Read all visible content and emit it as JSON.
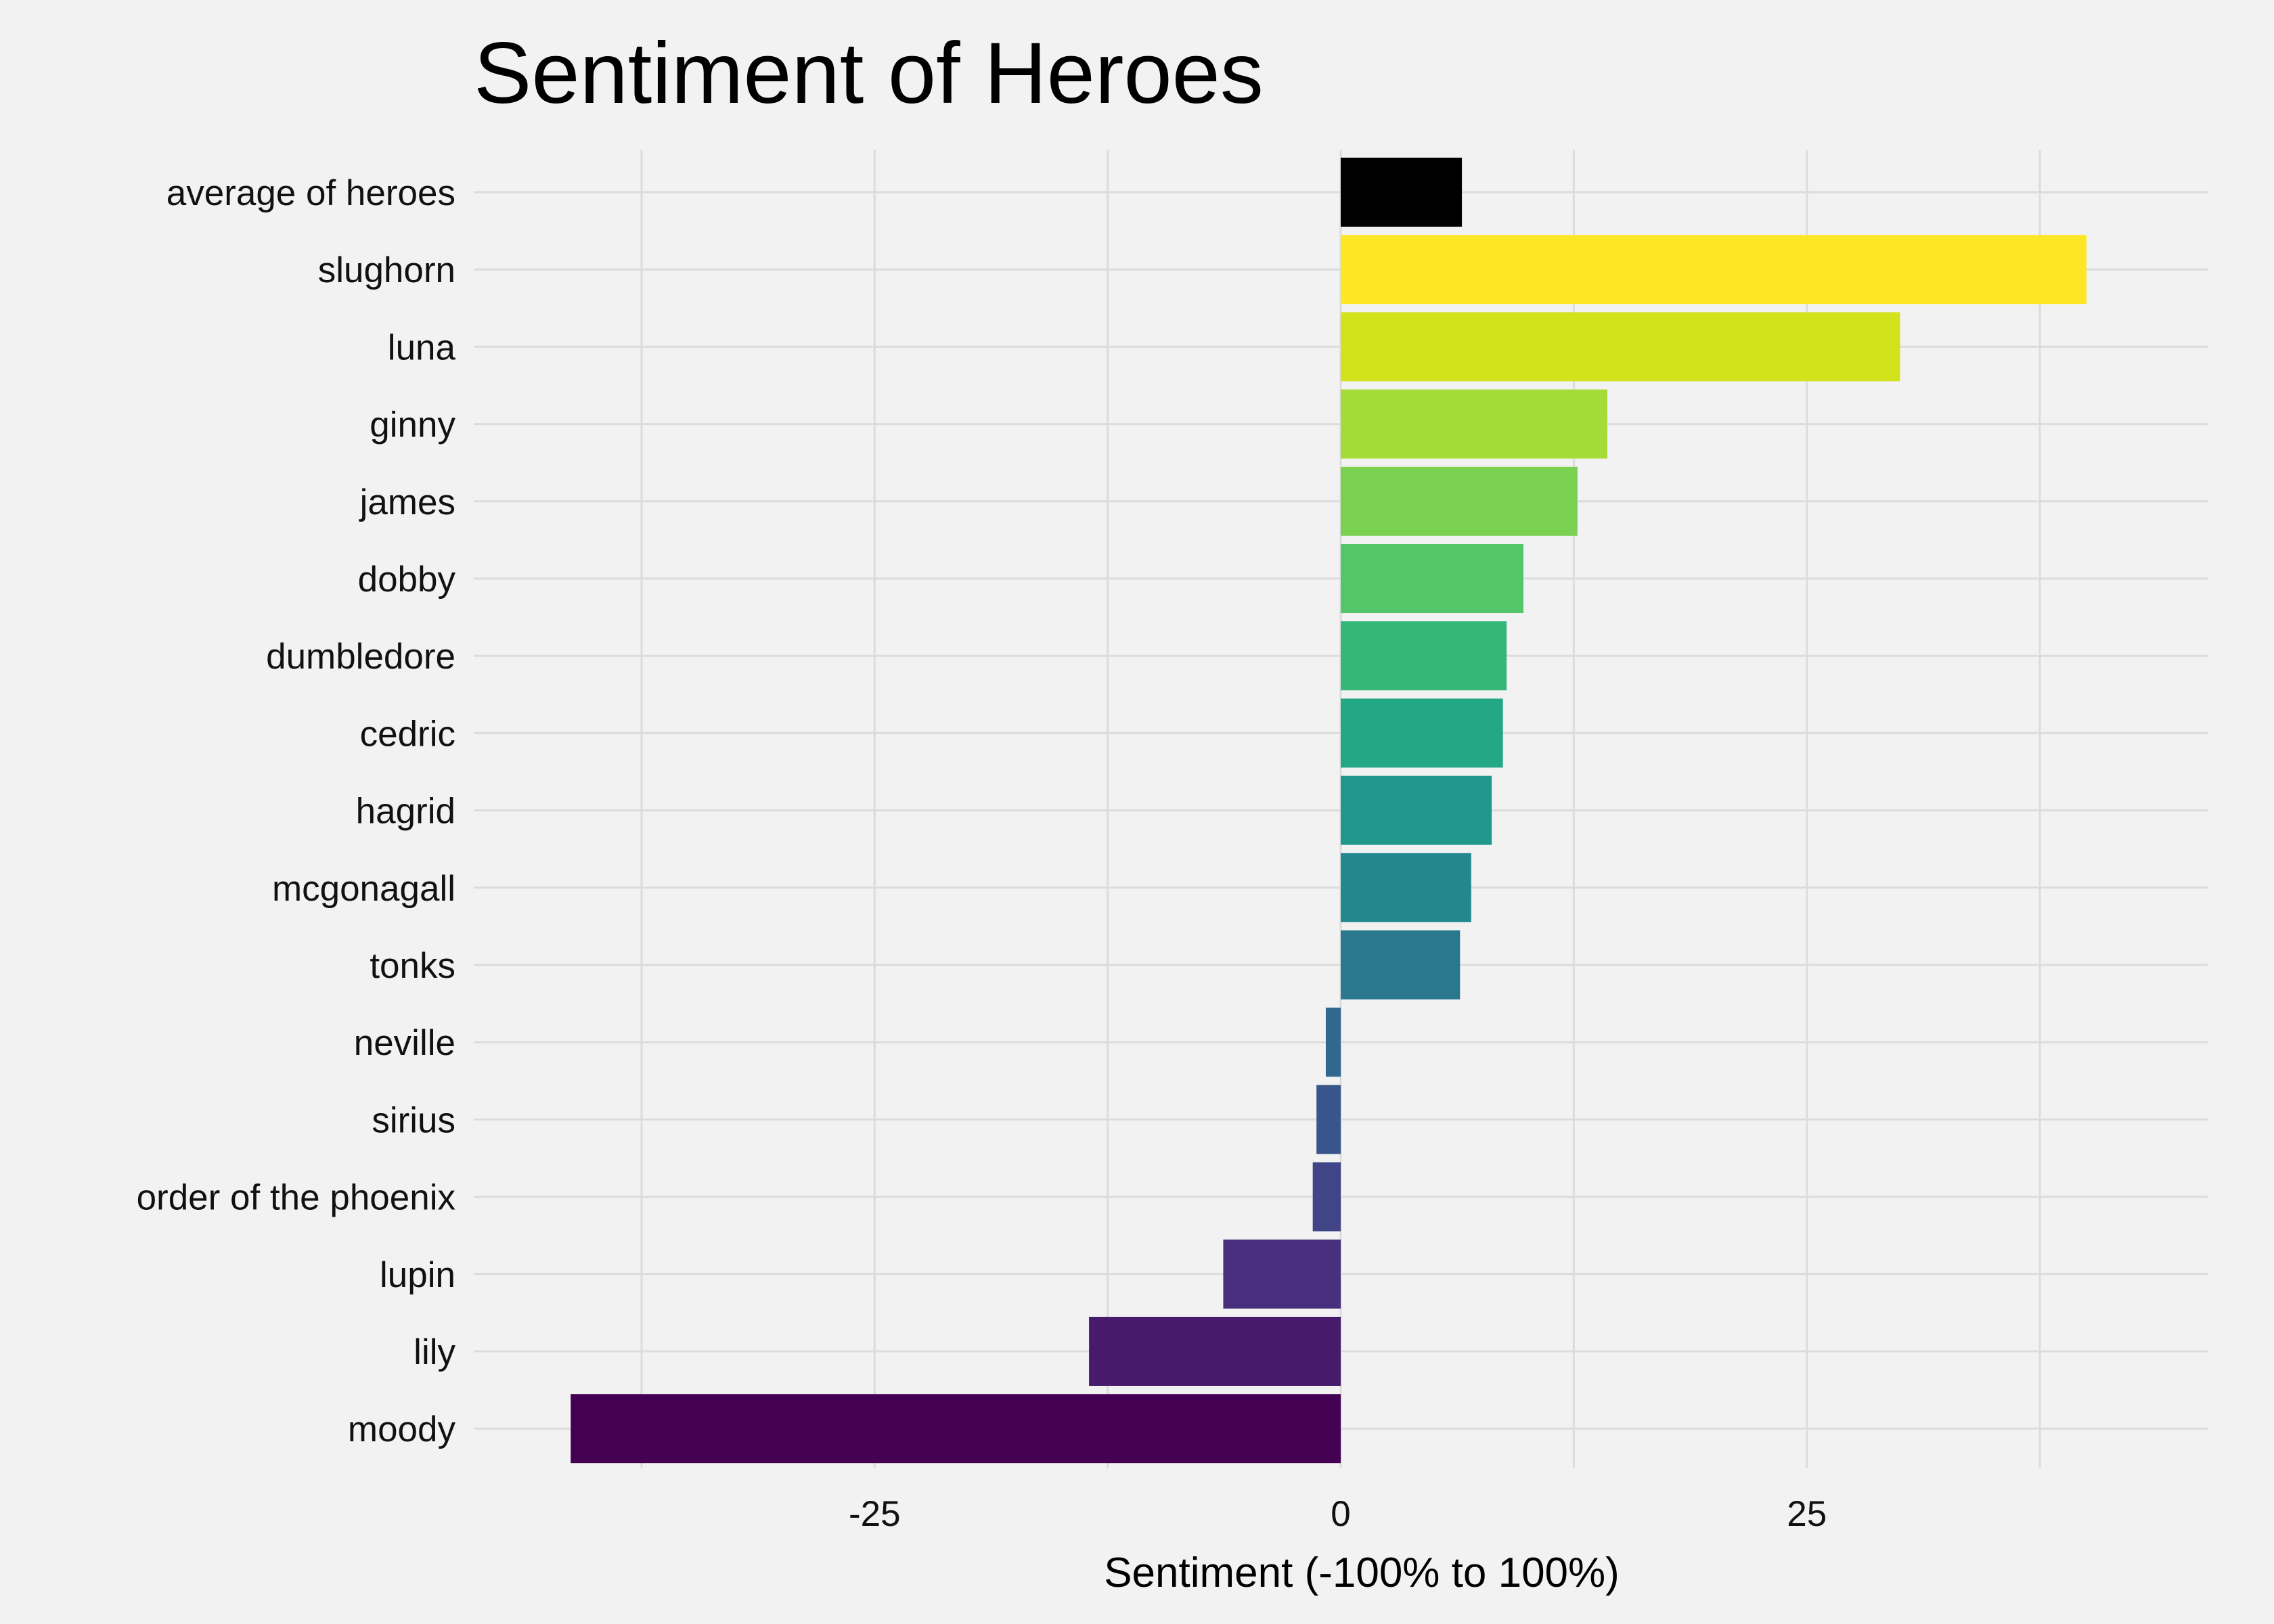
{
  "chart_data": {
    "type": "bar",
    "orientation": "horizontal",
    "title": "Sentiment of Heroes",
    "xlabel": "Sentiment (-100% to 100%)",
    "ylabel": "",
    "xlim": [
      -46.5,
      46.5
    ],
    "xticks": [
      -25,
      0,
      25
    ],
    "xtick_labels": [
      "-25",
      "0",
      "25"
    ],
    "grid": true,
    "legend": "none",
    "categories": [
      "average of heroes",
      "slughorn",
      "luna",
      "ginny",
      "james",
      "dobby",
      "dumbledore",
      "cedric",
      "hagrid",
      "mcgonagall",
      "tonks",
      "neville",
      "sirius",
      "order of the phoenix",
      "lupin",
      "lily",
      "moody"
    ],
    "values": [
      6.5,
      40.0,
      30.0,
      14.3,
      12.7,
      9.8,
      8.9,
      8.7,
      8.1,
      7.0,
      6.4,
      -0.8,
      -1.3,
      -1.5,
      -6.3,
      -13.5,
      -41.3
    ],
    "colors": [
      "#000000",
      "#fde725",
      "#d2e21b",
      "#a5db36",
      "#7ad151",
      "#54c568",
      "#35b779",
      "#22a884",
      "#1f988b",
      "#23888e",
      "#2a788e",
      "#31688e",
      "#39568c",
      "#414487",
      "#472f7d",
      "#471a6b",
      "#440154"
    ]
  }
}
